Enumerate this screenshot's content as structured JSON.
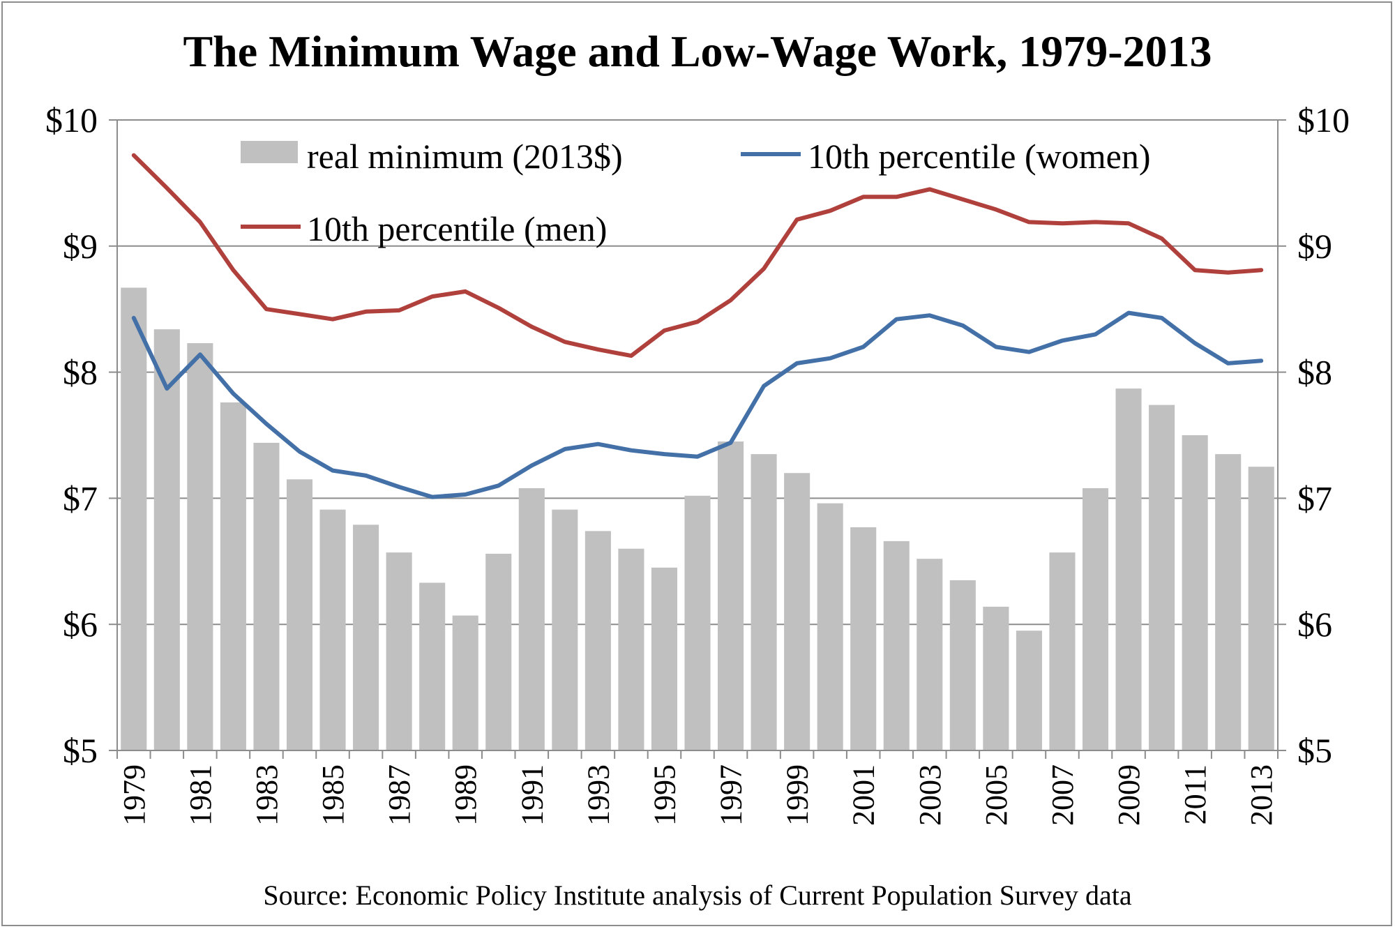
{
  "chart_data": {
    "type": "bar",
    "title": "The Minimum Wage and Low-Wage Work, 1979-2013",
    "source": "Source: Economic Policy Institute analysis of Current Population Survey data",
    "ylim": [
      5,
      10
    ],
    "y_ticks": [
      "$5",
      "$6",
      "$7",
      "$8",
      "$9",
      "$10"
    ],
    "x_tick_labels": [
      "1979",
      "1981",
      "1983",
      "1985",
      "1987",
      "1989",
      "1991",
      "1993",
      "1995",
      "1997",
      "1999",
      "2001",
      "2003",
      "2005",
      "2007",
      "2009",
      "2011",
      "2013"
    ],
    "grid": true,
    "legend_position": "top",
    "categories": [
      "1979",
      "1980",
      "1981",
      "1982",
      "1983",
      "1984",
      "1985",
      "1986",
      "1987",
      "1988",
      "1989",
      "1990",
      "1991",
      "1992",
      "1993",
      "1994",
      "1995",
      "1996",
      "1997",
      "1998",
      "1999",
      "2000",
      "2001",
      "2002",
      "2003",
      "2004",
      "2005",
      "2006",
      "2007",
      "2008",
      "2009",
      "2010",
      "2011",
      "2012",
      "2013"
    ],
    "series": [
      {
        "name": "real minimum (2013$)",
        "kind": "bar",
        "color": "#c0c0c0",
        "values": [
          8.67,
          8.34,
          8.23,
          7.76,
          7.44,
          7.15,
          6.91,
          6.79,
          6.57,
          6.33,
          6.07,
          6.56,
          7.08,
          6.91,
          6.74,
          6.6,
          6.45,
          7.02,
          7.45,
          7.35,
          7.2,
          6.96,
          6.77,
          6.66,
          6.52,
          6.35,
          6.14,
          5.95,
          6.57,
          7.08,
          7.87,
          7.74,
          7.5,
          7.35,
          7.25
        ]
      },
      {
        "name": "10th percentile (women)",
        "kind": "line",
        "color": "#4470a8",
        "values": [
          8.43,
          7.87,
          8.14,
          7.83,
          7.59,
          7.37,
          7.22,
          7.18,
          7.09,
          7.01,
          7.03,
          7.1,
          7.26,
          7.39,
          7.43,
          7.38,
          7.35,
          7.33,
          7.44,
          7.89,
          8.07,
          8.11,
          8.2,
          8.42,
          8.45,
          8.37,
          8.2,
          8.16,
          8.25,
          8.3,
          8.47,
          8.43,
          8.23,
          8.07,
          8.09
        ]
      },
      {
        "name": "10th percentile (men)",
        "kind": "line",
        "color": "#b0403c",
        "values": [
          9.72,
          9.46,
          9.19,
          8.81,
          8.5,
          8.46,
          8.42,
          8.48,
          8.49,
          8.6,
          8.64,
          8.51,
          8.36,
          8.24,
          8.18,
          8.13,
          8.33,
          8.4,
          8.57,
          8.82,
          9.21,
          9.28,
          9.39,
          9.39,
          9.45,
          9.37,
          9.29,
          9.19,
          9.18,
          9.19,
          9.18,
          9.06,
          8.81,
          8.79,
          8.81
        ]
      }
    ]
  }
}
